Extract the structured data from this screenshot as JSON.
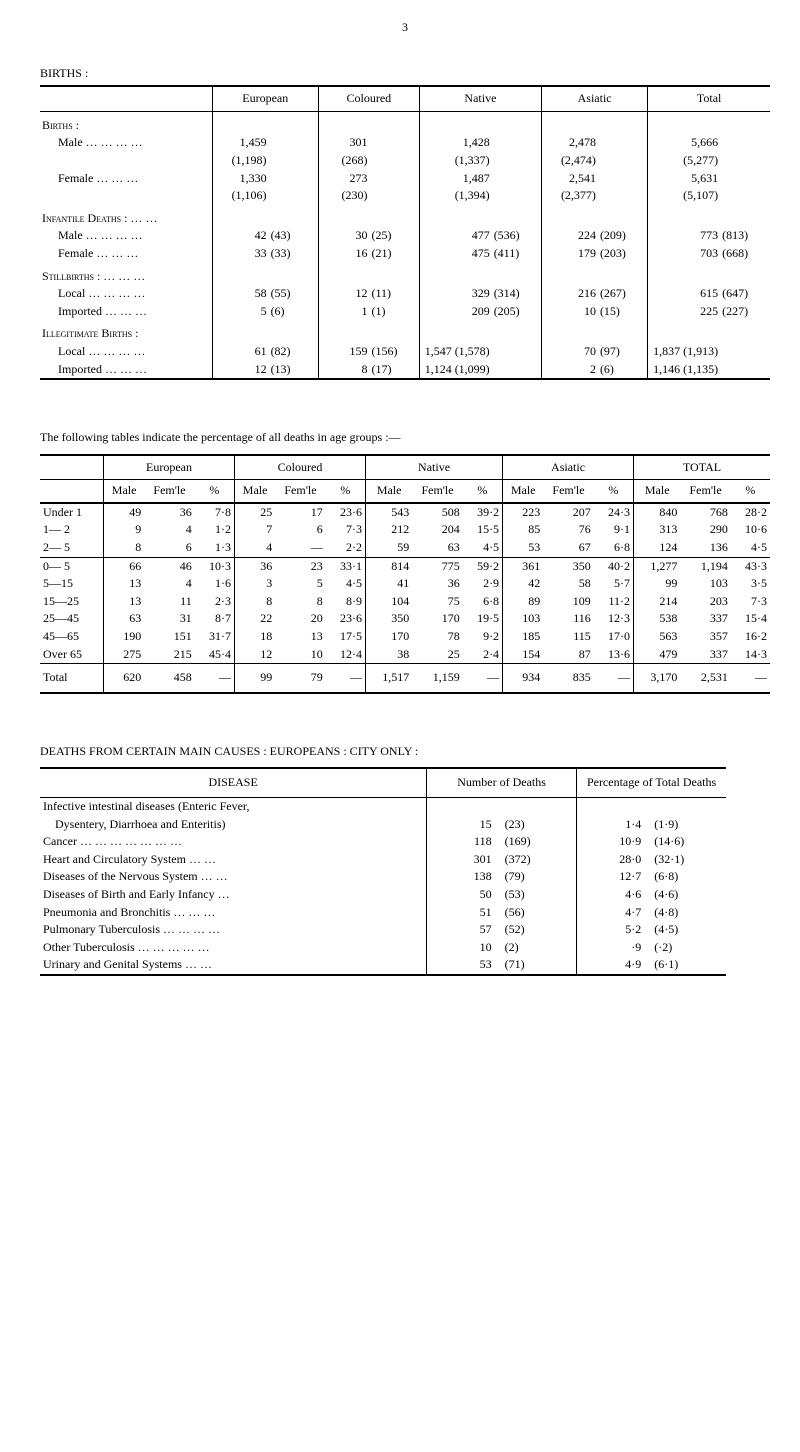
{
  "page_number": "3",
  "sec1_label": "BIRTHS :",
  "t1": {
    "cols": [
      "European",
      "Coloured",
      "Native",
      "Asiatic",
      "Total"
    ],
    "groups": [
      {
        "header": "Births :",
        "rows": [
          {
            "label": "Male … … … …",
            "cells": [
              [
                "1,459",
                ""
              ],
              [
                "301",
                ""
              ],
              [
                "1,428",
                ""
              ],
              [
                "2,478",
                ""
              ],
              [
                "5,666",
                ""
              ]
            ]
          },
          {
            "label": "",
            "cells": [
              [
                "(1,198)",
                ""
              ],
              [
                "(268)",
                ""
              ],
              [
                "(1,337)",
                ""
              ],
              [
                "(2,474)",
                ""
              ],
              [
                "(5,277)",
                ""
              ]
            ]
          },
          {
            "label": "Female     … … …",
            "cells": [
              [
                "1,330",
                ""
              ],
              [
                "273",
                ""
              ],
              [
                "1,487",
                ""
              ],
              [
                "2,541",
                ""
              ],
              [
                "5,631",
                ""
              ]
            ]
          },
          {
            "label": "",
            "cells": [
              [
                "(1,106)",
                ""
              ],
              [
                "(230)",
                ""
              ],
              [
                "(1,394)",
                ""
              ],
              [
                "(2,377)",
                ""
              ],
              [
                "(5,107)",
                ""
              ]
            ]
          }
        ]
      },
      {
        "header": "Infantile Deaths :  …  …",
        "rows": [
          {
            "label": "Male … … … …",
            "cells": [
              [
                "42",
                "(43)"
              ],
              [
                "30",
                "(25)"
              ],
              [
                "477",
                "(536)"
              ],
              [
                "224",
                "(209)"
              ],
              [
                "773",
                "(813)"
              ]
            ]
          },
          {
            "label": "Female     … … …",
            "cells": [
              [
                "33",
                "(33)"
              ],
              [
                "16",
                "(21)"
              ],
              [
                "475",
                "(411)"
              ],
              [
                "179",
                "(203)"
              ],
              [
                "703",
                "(668)"
              ]
            ]
          }
        ]
      },
      {
        "header": "Stillbirths :   … … …",
        "rows": [
          {
            "label": "Local … … … …",
            "cells": [
              [
                "58",
                "(55)"
              ],
              [
                "12",
                "(11)"
              ],
              [
                "329",
                "(314)"
              ],
              [
                "216",
                "(267)"
              ],
              [
                "615",
                "(647)"
              ]
            ]
          },
          {
            "label": "Imported   … … …",
            "cells": [
              [
                "5",
                "(6)"
              ],
              [
                "1",
                "(1)"
              ],
              [
                "209",
                "(205)"
              ],
              [
                "10",
                "(15)"
              ],
              [
                "225",
                "(227)"
              ]
            ]
          }
        ]
      },
      {
        "header": "Illegitimate Births :",
        "rows": [
          {
            "label": "Local … … … …",
            "cells": [
              [
                "61",
                "(82)"
              ],
              [
                "159",
                "(156)"
              ],
              [
                "1,547 (1,578)",
                ""
              ],
              [
                "70",
                "(97)"
              ],
              [
                "1,837 (1,913)",
                ""
              ]
            ]
          },
          {
            "label": "Imported   … … …",
            "cells": [
              [
                "12",
                "(13)"
              ],
              [
                "8",
                "(17)"
              ],
              [
                "1,124 (1,099)",
                ""
              ],
              [
                "2",
                "(6)"
              ],
              [
                "1,146 (1,135)",
                ""
              ]
            ]
          }
        ]
      }
    ]
  },
  "inter1": "The following tables indicate the percentage of all deaths in age groups :—",
  "t2": {
    "blocks": [
      "European",
      "Coloured",
      "Native",
      "Asiatic",
      "TOTAL"
    ],
    "subcols": [
      "Male",
      "Fem'le",
      "%"
    ],
    "rows_a": [
      {
        "label": "Under 1",
        "v": [
          [
            "49",
            "36",
            "7·8"
          ],
          [
            "25",
            "17",
            "23·6"
          ],
          [
            "543",
            "508",
            "39·2"
          ],
          [
            "223",
            "207",
            "24·3"
          ],
          [
            "840",
            "768",
            "28·2"
          ]
        ]
      },
      {
        "label": "1— 2",
        "v": [
          [
            "9",
            "4",
            "1·2"
          ],
          [
            "7",
            "6",
            "7·3"
          ],
          [
            "212",
            "204",
            "15·5"
          ],
          [
            "85",
            "76",
            "9·1"
          ],
          [
            "313",
            "290",
            "10·6"
          ]
        ]
      },
      {
        "label": "2— 5",
        "v": [
          [
            "8",
            "6",
            "1·3"
          ],
          [
            "4",
            "—",
            "2·2"
          ],
          [
            "59",
            "63",
            "4·5"
          ],
          [
            "53",
            "67",
            "6·8"
          ],
          [
            "124",
            "136",
            "4·5"
          ]
        ]
      }
    ],
    "rows_b": [
      {
        "label": "0— 5",
        "v": [
          [
            "66",
            "46",
            "10·3"
          ],
          [
            "36",
            "23",
            "33·1"
          ],
          [
            "814",
            "775",
            "59·2"
          ],
          [
            "361",
            "350",
            "40·2"
          ],
          [
            "1,277",
            "1,194",
            "43·3"
          ]
        ]
      },
      {
        "label": "5—15",
        "v": [
          [
            "13",
            "4",
            "1·6"
          ],
          [
            "3",
            "5",
            "4·5"
          ],
          [
            "41",
            "36",
            "2·9"
          ],
          [
            "42",
            "58",
            "5·7"
          ],
          [
            "99",
            "103",
            "3·5"
          ]
        ]
      },
      {
        "label": "15—25",
        "v": [
          [
            "13",
            "11",
            "2·3"
          ],
          [
            "8",
            "8",
            "8·9"
          ],
          [
            "104",
            "75",
            "6·8"
          ],
          [
            "89",
            "109",
            "11·2"
          ],
          [
            "214",
            "203",
            "7·3"
          ]
        ]
      },
      {
        "label": "25—45",
        "v": [
          [
            "63",
            "31",
            "8·7"
          ],
          [
            "22",
            "20",
            "23·6"
          ],
          [
            "350",
            "170",
            "19·5"
          ],
          [
            "103",
            "116",
            "12·3"
          ],
          [
            "538",
            "337",
            "15·4"
          ]
        ]
      },
      {
        "label": "45—65",
        "v": [
          [
            "190",
            "151",
            "31·7"
          ],
          [
            "18",
            "13",
            "17·5"
          ],
          [
            "170",
            "78",
            "9·2"
          ],
          [
            "185",
            "115",
            "17·0"
          ],
          [
            "563",
            "357",
            "16·2"
          ]
        ]
      },
      {
        "label": "Over 65",
        "v": [
          [
            "275",
            "215",
            "45·4"
          ],
          [
            "12",
            "10",
            "12·4"
          ],
          [
            "38",
            "25",
            "2·4"
          ],
          [
            "154",
            "87",
            "13·6"
          ],
          [
            "479",
            "337",
            "14·3"
          ]
        ]
      }
    ],
    "total": {
      "label": "Total",
      "v": [
        [
          "620",
          "458",
          "—"
        ],
        [
          "99",
          "79",
          "—"
        ],
        [
          "1,517",
          "1,159",
          "—"
        ],
        [
          "934",
          "835",
          "—"
        ],
        [
          "3,170",
          "2,531",
          "—"
        ]
      ]
    }
  },
  "sec3_label": "DEATHS FROM CERTAIN MAIN CAUSES :  EUROPEANS :  CITY ONLY :",
  "t3": {
    "cols": [
      "DISEASE",
      "Number of Deaths",
      "Percentage of Total Deaths"
    ],
    "rows": [
      {
        "d": "Infective intestinal diseases (Enteric Fever,",
        "n": "",
        "p": "",
        "pc": "",
        "pp": ""
      },
      {
        "d": " Dysentery, Diarrhoea and Enteritis)",
        "n": "15",
        "p": "(23)",
        "pc": "1·4",
        "pp": "(1·9)"
      },
      {
        "d": "Cancer      … … … … … … …",
        "n": "118",
        "p": "(169)",
        "pc": "10·9",
        "pp": "(14·6)"
      },
      {
        "d": "Heart and Circulatory System    … …",
        "n": "301",
        "p": "(372)",
        "pc": "28·0",
        "pp": "(32·1)"
      },
      {
        "d": "Diseases of the Nervous System … …",
        "n": "138",
        "p": "(79)",
        "pc": "12·7",
        "pp": "(6·8)"
      },
      {
        "d": "Diseases of Birth and Early Infancy …",
        "n": "50",
        "p": "(53)",
        "pc": "4·6",
        "pp": "(4·6)"
      },
      {
        "d": "Pneumonia and Bronchitis   … … …",
        "n": "51",
        "p": "(56)",
        "pc": "4·7",
        "pp": "(4·8)"
      },
      {
        "d": "Pulmonary Tuberculosis … … … …",
        "n": "57",
        "p": "(52)",
        "pc": "5·2",
        "pp": "(4·5)"
      },
      {
        "d": "Other Tuberculosis … … … … …",
        "n": "10",
        "p": "(2)",
        "pc": "·9",
        "pp": "(·2)"
      },
      {
        "d": "Urinary and Genital Systems    … …",
        "n": "53",
        "p": "(71)",
        "pc": "4·9",
        "pp": "(6·1)"
      }
    ]
  }
}
